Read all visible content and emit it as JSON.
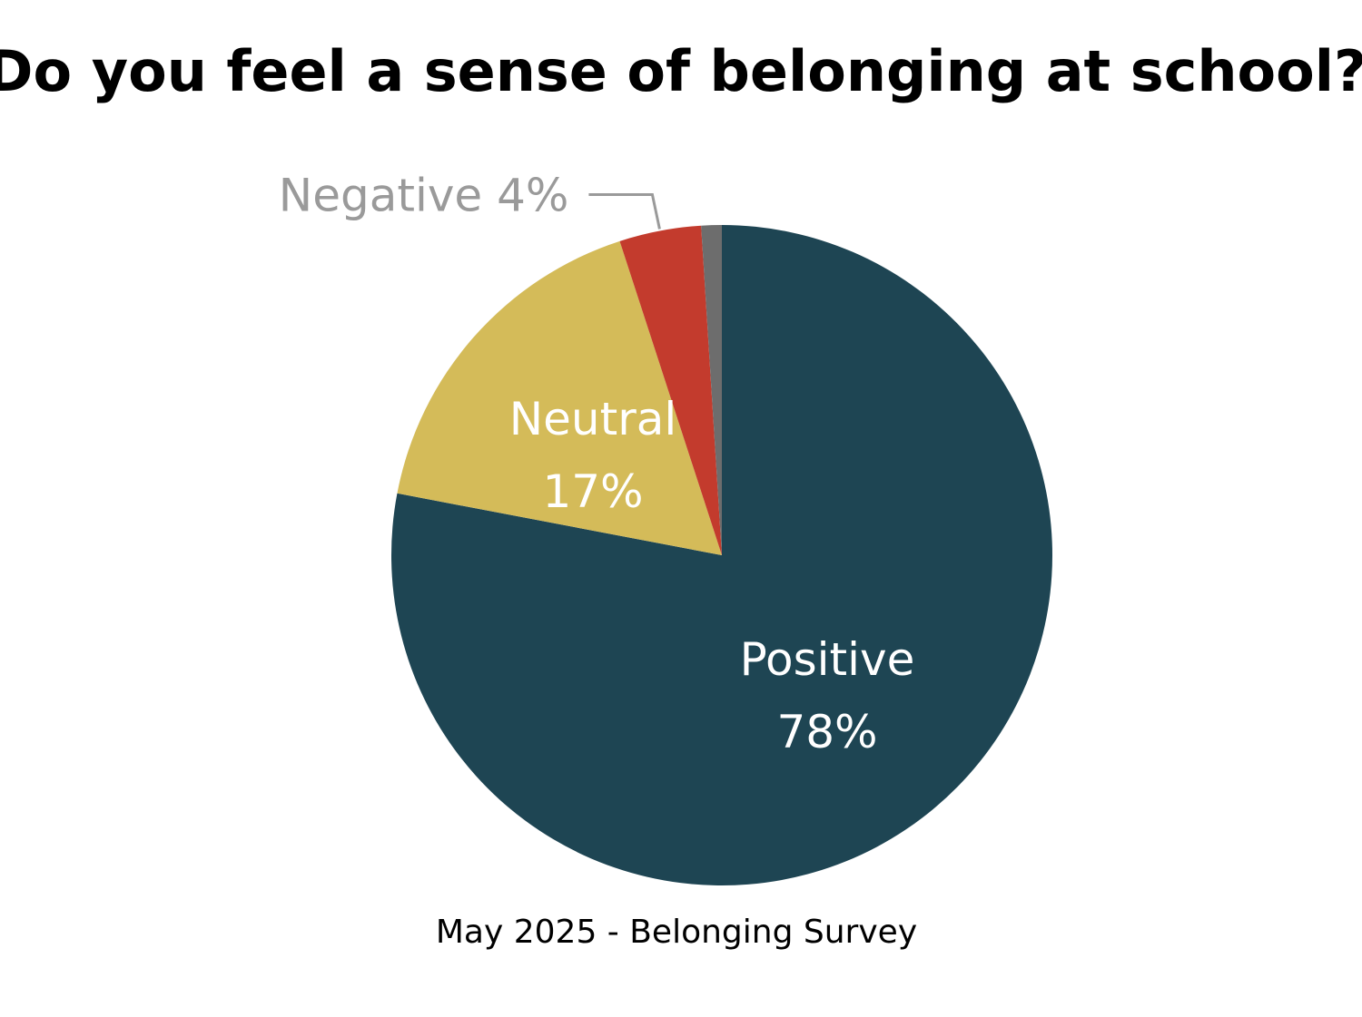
{
  "chart_data": {
    "type": "pie",
    "title": "Do you feel a sense of belonging at school?",
    "caption": "May 2025 - Belonging Survey",
    "slices": [
      {
        "category": "Positive",
        "value": 78,
        "value_label": "78%",
        "color": "#1e4553",
        "label_placement": "inside"
      },
      {
        "category": "Neutral",
        "value": 17,
        "value_label": "17%",
        "color": "#d4bb59",
        "label_placement": "inside"
      },
      {
        "category": "Negative",
        "value": 4,
        "value_label": "4%",
        "color": "#c33b2d",
        "label_placement": "outside"
      },
      {
        "category": "",
        "value": 1,
        "value_label": "",
        "color": "#6d6d6d",
        "label_placement": "none"
      }
    ],
    "start_angle": "12 o'clock",
    "direction": "clockwise"
  }
}
